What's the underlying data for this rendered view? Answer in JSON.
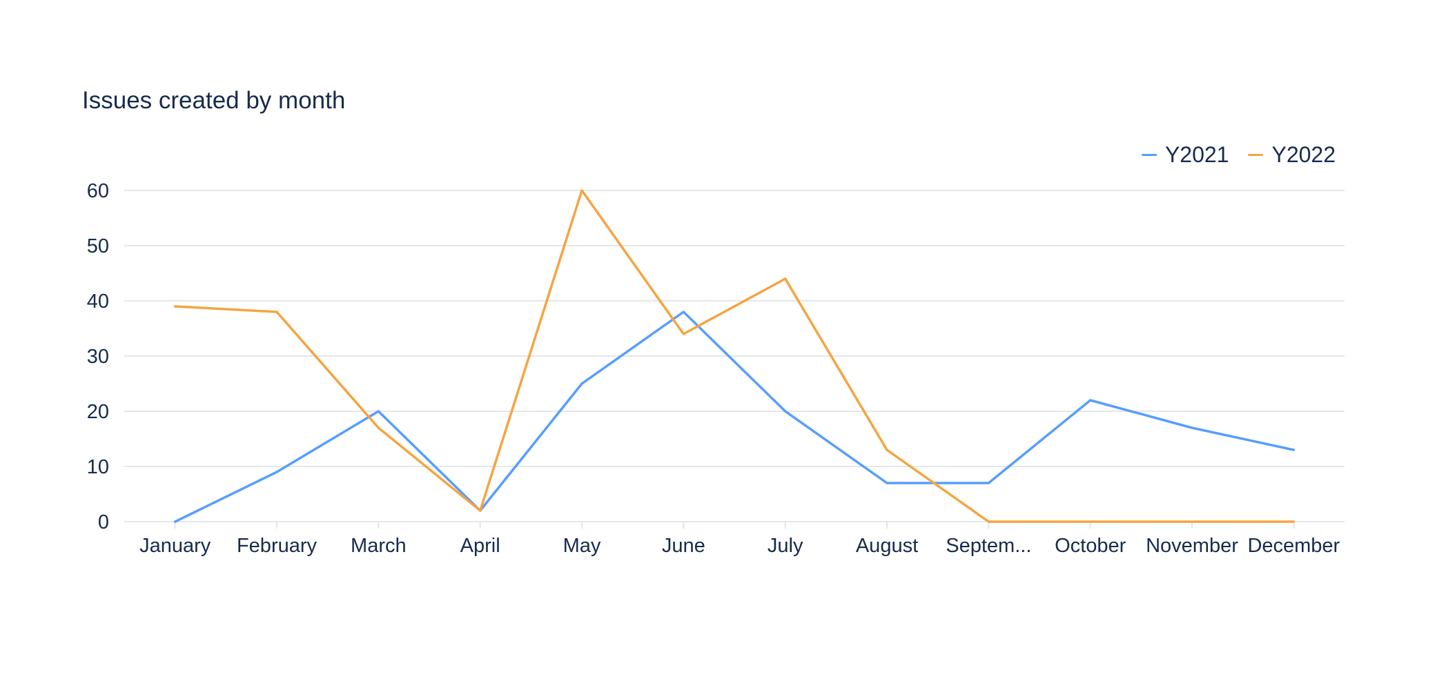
{
  "colors": {
    "Y2021": "#579dff",
    "Y2022": "#f5a440",
    "grid": "#e4e6ea",
    "text": "#172b4d"
  },
  "chart_data": {
    "type": "line",
    "title": "Issues created by month",
    "xlabel": "",
    "ylabel": "",
    "categories": [
      "January",
      "February",
      "March",
      "April",
      "May",
      "June",
      "July",
      "August",
      "Septem...",
      "October",
      "November",
      "December"
    ],
    "yticks": [
      0,
      10,
      20,
      30,
      40,
      50,
      60
    ],
    "ylim": [
      0,
      60
    ],
    "grid": true,
    "legend_position": "top-right",
    "series": [
      {
        "name": "Y2021",
        "color": "#579dff",
        "values": [
          0,
          9,
          20,
          2,
          25,
          38,
          20,
          7,
          7,
          22,
          17,
          13
        ]
      },
      {
        "name": "Y2022",
        "color": "#f5a440",
        "values": [
          39,
          38,
          17,
          2,
          60,
          34,
          44,
          13,
          0,
          0,
          0,
          0
        ]
      }
    ]
  }
}
